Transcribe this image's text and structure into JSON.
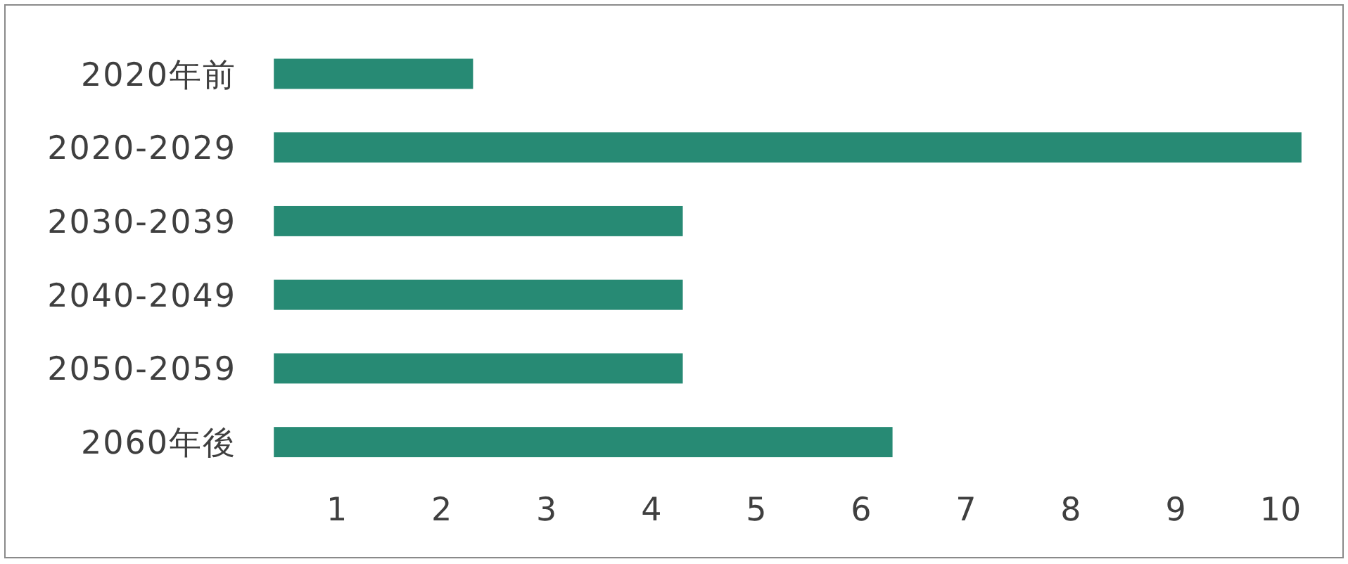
{
  "chart_data": {
    "type": "bar",
    "orientation": "horizontal",
    "categories": [
      "2020年前",
      "2020-2029",
      "2030-2039",
      "2040-2049",
      "2050-2059",
      "2060年後"
    ],
    "values": [
      2.3,
      10.2,
      4.3,
      4.3,
      4.3,
      6.3
    ],
    "color": "#278a74",
    "xlim": [
      0.4,
      10.3
    ],
    "xticks": [
      1,
      2,
      3,
      4,
      5,
      6,
      7,
      8,
      9,
      10
    ]
  }
}
